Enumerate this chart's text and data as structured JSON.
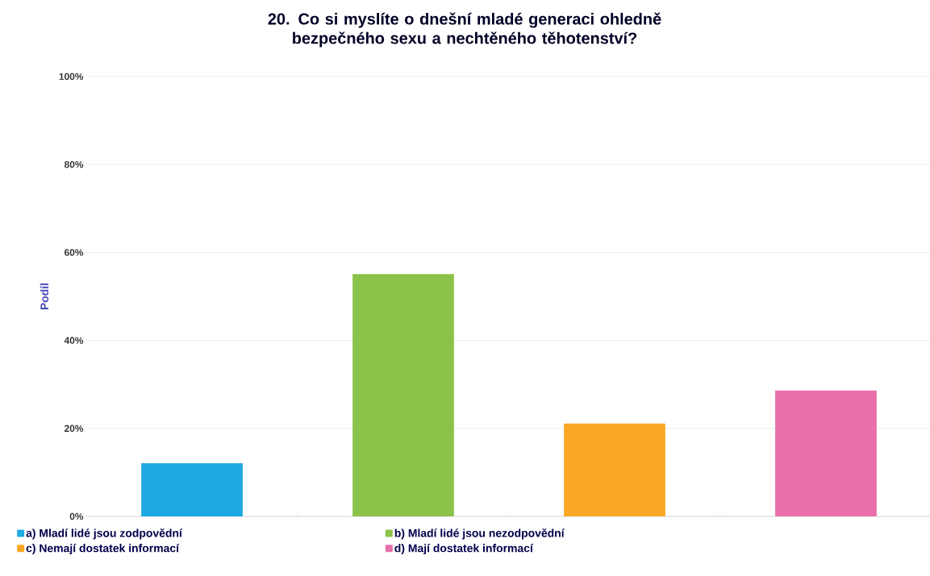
{
  "chart_data": {
    "type": "bar",
    "title": "20. Co si myslíte o dnešní mladé generaci ohledně bezpečného sexu a nechtěného těhotenství?",
    "ylabel": "Podíl",
    "categories": [
      null,
      null,
      null,
      null
    ],
    "series": [
      {
        "name": "a) Mladí lidé jsou zodpovědní",
        "color": "#1fa9e1",
        "values": [
          12.1,
          null,
          null,
          null
        ]
      },
      {
        "name": "b) Mladí lidé jsou nezodpovědní",
        "color": "#8bc34a",
        "values": [
          null,
          55.1,
          null,
          null
        ]
      },
      {
        "name": "c) Nemají dostatek informací",
        "color": "#f9a825",
        "values": [
          null,
          null,
          21.1,
          null
        ]
      },
      {
        "name": "d) Mají dostatek informací",
        "color": "#e96fab",
        "values": [
          null,
          null,
          null,
          28.6
        ]
      }
    ],
    "ylim": [
      0,
      100
    ],
    "yticks": [
      {
        "value": 0,
        "label": "0%"
      },
      {
        "value": 20,
        "label": "20%"
      },
      {
        "value": 40,
        "label": "40%"
      },
      {
        "value": 60,
        "label": "60%"
      },
      {
        "value": 80,
        "label": "80%"
      },
      {
        "value": 100,
        "label": "100%"
      }
    ],
    "grid": "y",
    "legend": "bottom"
  }
}
